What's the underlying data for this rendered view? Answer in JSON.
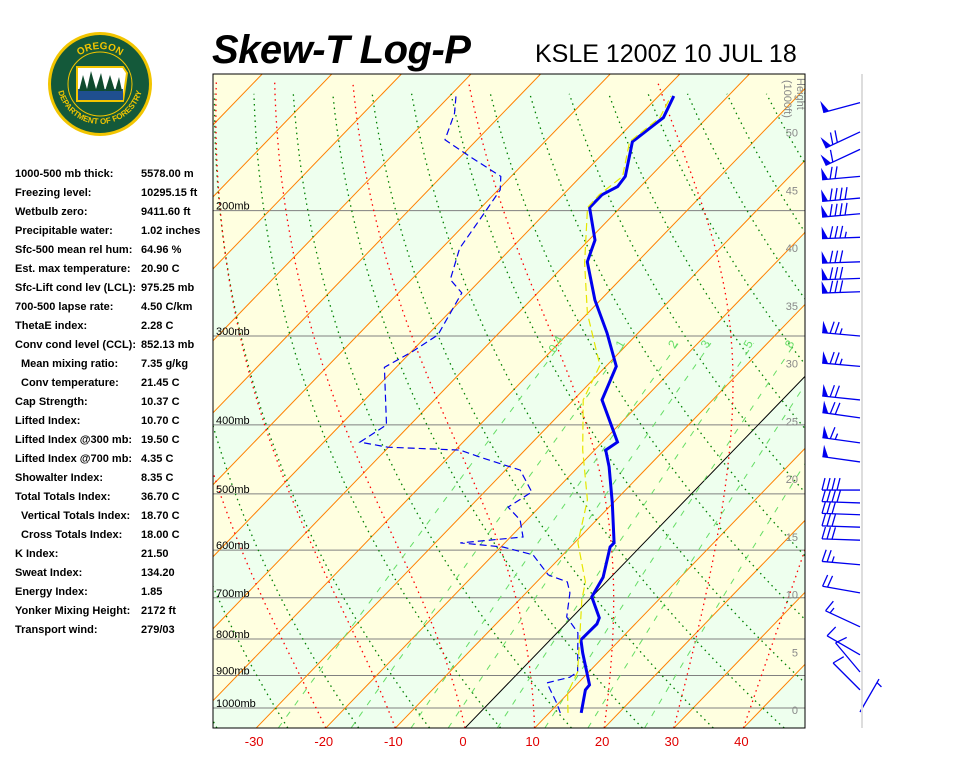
{
  "header": {
    "title": "Skew-T Log-P",
    "station": "KSLE 1200Z 10 JUL 18"
  },
  "logo": {
    "top_text": "OREGON",
    "bottom_text": "DEPARTMENT OF FORESTRY",
    "colors": {
      "ring": "#f2c500",
      "field": "#14593a",
      "sky": "#1f4f8f"
    }
  },
  "stats": [
    {
      "label": "1000-500 mb thick:",
      "value": "5578.00 m",
      "indent": false
    },
    {
      "label": "Freezing level:",
      "value": "10295.15 ft",
      "indent": false
    },
    {
      "label": "Wetbulb zero:",
      "value": "9411.60 ft",
      "indent": false
    },
    {
      "label": "Precipitable water:",
      "value": "1.02 inches",
      "indent": false
    },
    {
      "label": "Sfc-500 mean rel hum:",
      "value": "64.96 %",
      "indent": false
    },
    {
      "label": "Est. max temperature:",
      "value": "20.90 C",
      "indent": false
    },
    {
      "label": "Sfc-Lift cond lev (LCL):",
      "value": "975.25 mb",
      "indent": false
    },
    {
      "label": "700-500 lapse rate:",
      "value": "4.50 C/km",
      "indent": false
    },
    {
      "label": "ThetaE index:",
      "value": "2.28 C",
      "indent": false
    },
    {
      "label": "Conv cond level (CCL):",
      "value": "852.13 mb",
      "indent": false
    },
    {
      "label": "Mean mixing ratio:",
      "value": "7.35 g/kg",
      "indent": true
    },
    {
      "label": "Conv temperature:",
      "value": "21.45 C",
      "indent": true
    },
    {
      "label": "Cap Strength:",
      "value": "10.37 C",
      "indent": false
    },
    {
      "label": "Lifted Index:",
      "value": "10.70 C",
      "indent": false
    },
    {
      "label": "Lifted Index @300 mb:",
      "value": "19.50 C",
      "indent": false
    },
    {
      "label": "Lifted Index @700 mb:",
      "value": "4.35 C",
      "indent": false
    },
    {
      "label": "Showalter Index:",
      "value": "8.35 C",
      "indent": false
    },
    {
      "label": "Total Totals Index:",
      "value": "36.70 C",
      "indent": false
    },
    {
      "label": "Vertical Totals Index:",
      "value": "18.70 C",
      "indent": true
    },
    {
      "label": "Cross Totals Index:",
      "value": "18.00 C",
      "indent": true
    },
    {
      "label": "K Index:",
      "value": "21.50",
      "indent": false
    },
    {
      "label": "Sweat Index:",
      "value": "134.20",
      "indent": false
    },
    {
      "label": "Energy Index:",
      "value": "1.85",
      "indent": false
    },
    {
      "label": "Yonker Mixing Height:",
      "value": "2172 ft",
      "indent": false
    },
    {
      "label": "Transport wind:",
      "value": "279/03",
      "indent": false
    }
  ],
  "chart_data": {
    "type": "line",
    "title": "Skew-T Log-P",
    "x_axis": {
      "ticks": [
        -30,
        -20,
        -10,
        0,
        10,
        20,
        30,
        40
      ],
      "unit": "C",
      "log": false
    },
    "y_axis": {
      "scale": "log-pressure",
      "range_mb": [
        1067,
        128
      ],
      "pressure_labels": [
        "200mb",
        "300mb",
        "400mb",
        "500mb",
        "600mb",
        "700mb",
        "800mb",
        "900mb",
        "1000mb"
      ],
      "pressure_levels": [
        200,
        300,
        400,
        500,
        600,
        700,
        800,
        900,
        1000
      ]
    },
    "height_axis": {
      "label": "Height",
      "unit_label": "(1000ft)",
      "ticks": [
        0,
        5,
        10,
        15,
        20,
        25,
        30,
        35,
        40,
        45,
        50
      ]
    },
    "mixing_ratio_labels": [
      "0.4",
      "1",
      "2",
      "3",
      "5",
      "8"
    ],
    "mixing_ratio_values": [
      0.4,
      1,
      2,
      3,
      5,
      8,
      12,
      20
    ],
    "grid": true,
    "colors": {
      "temperature": "#0000ee",
      "dewpoint": "#0000ee",
      "parcel": "#e6e600",
      "isotherm": "#ff8000",
      "zero_isotherm": "#000000",
      "dry_adiabat": "#008000",
      "moist_adiabat": "#ff0000",
      "mixing_ratio": "#66dd66",
      "band_a": "#ffffe0",
      "band_b": "#eeffee",
      "axis_labels": "#e00000"
    },
    "series": [
      {
        "kind": "temperature",
        "style": "solid-thick",
        "points": [
          [
            1016,
            14.6
          ],
          [
            943,
            12.0
          ],
          [
            928,
            11.9
          ],
          [
            837,
            6.5
          ],
          [
            802,
            4.4
          ],
          [
            762,
            4.5
          ],
          [
            747,
            4.0
          ],
          [
            698,
            0.0
          ],
          [
            655,
            -1.1
          ],
          [
            594,
            -4.3
          ],
          [
            586,
            -4.3
          ],
          [
            515,
            -10.1
          ],
          [
            458,
            -15.6
          ],
          [
            434,
            -18.4
          ],
          [
            423,
            -17.8
          ],
          [
            369,
            -25.9
          ],
          [
            331,
            -28.5
          ],
          [
            297,
            -34.5
          ],
          [
            267,
            -40.8
          ],
          [
            236,
            -47.2
          ],
          [
            220,
            -49.1
          ],
          [
            198,
            -54.4
          ],
          [
            190,
            -54.4
          ],
          [
            185,
            -53.3
          ],
          [
            179,
            -53.6
          ],
          [
            160,
            -57.4
          ],
          [
            148,
            -56.3
          ],
          [
            138,
            -57.8
          ]
        ]
      },
      {
        "kind": "dewpoint",
        "style": "dashed",
        "points": [
          [
            1016,
            11.6
          ],
          [
            984,
            9.7
          ],
          [
            922,
            5.5
          ],
          [
            905,
            8.0
          ],
          [
            890,
            8.4
          ],
          [
            784,
            3.0
          ],
          [
            745,
            -0.8
          ],
          [
            689,
            -3.7
          ],
          [
            665,
            -5.6
          ],
          [
            650,
            -9.3
          ],
          [
            609,
            -14.3
          ],
          [
            594,
            -19.7
          ],
          [
            586,
            -26.4
          ],
          [
            575,
            -18.2
          ],
          [
            544,
            -21.0
          ],
          [
            522,
            -24.5
          ],
          [
            497,
            -23.2
          ],
          [
            463,
            -27.9
          ],
          [
            444,
            -35.5
          ],
          [
            434,
            -39.3
          ],
          [
            430,
            -50.1
          ],
          [
            423,
            -54.8
          ],
          [
            400,
            -53.4
          ],
          [
            332,
            -61.7
          ],
          [
            316,
            -59.9
          ],
          [
            299,
            -58.5
          ],
          [
            261,
            -60.9
          ],
          [
            250,
            -64.4
          ],
          [
            226,
            -67.4
          ],
          [
            201,
            -68.8
          ],
          [
            187,
            -69.7
          ],
          [
            179,
            -71.5
          ],
          [
            168,
            -78.6
          ],
          [
            159,
            -84.6
          ],
          [
            146,
            -86.9
          ],
          [
            138,
            -89.1
          ]
        ]
      },
      {
        "kind": "parcel",
        "style": "dashed-yellow",
        "points": [
          [
            1016,
            12.7
          ],
          [
            953,
            9.9
          ],
          [
            890,
            8.4
          ],
          [
            784,
            3.3
          ],
          [
            705,
            -1.0
          ],
          [
            665,
            -3.0
          ],
          [
            586,
            -9.5
          ],
          [
            510,
            -14.1
          ],
          [
            434,
            -21.7
          ],
          [
            369,
            -28.6
          ],
          [
            330,
            -31.0
          ],
          [
            279,
            -40.0
          ],
          [
            237,
            -47.4
          ],
          [
            198,
            -54.7
          ],
          [
            190,
            -54.8
          ],
          [
            179,
            -54.0
          ],
          [
            160,
            -57.8
          ],
          [
            148,
            -56.8
          ],
          [
            138,
            -58.2
          ]
        ]
      }
    ],
    "wind": [
      [
        141,
        255,
        50
      ],
      [
        155,
        245,
        70
      ],
      [
        164,
        245,
        60
      ],
      [
        179,
        265,
        70
      ],
      [
        192,
        265,
        90
      ],
      [
        202,
        265,
        90
      ],
      [
        218,
        268,
        85
      ],
      [
        236,
        268,
        80
      ],
      [
        249,
        268,
        80
      ],
      [
        260,
        268,
        80
      ],
      [
        300,
        275,
        75
      ],
      [
        331,
        275,
        75
      ],
      [
        369,
        276,
        70
      ],
      [
        391,
        278,
        70
      ],
      [
        424,
        278,
        65
      ],
      [
        451,
        278,
        50
      ],
      [
        494,
        270,
        40
      ],
      [
        515,
        272,
        40
      ],
      [
        535,
        272,
        30
      ],
      [
        557,
        272,
        30
      ],
      [
        581,
        272,
        30
      ],
      [
        629,
        275,
        25
      ],
      [
        689,
        280,
        20
      ],
      [
        769,
        295,
        15
      ],
      [
        842,
        300,
        10
      ],
      [
        890,
        320,
        10
      ],
      [
        943,
        315,
        10
      ],
      [
        1013,
        30,
        5
      ]
    ]
  }
}
